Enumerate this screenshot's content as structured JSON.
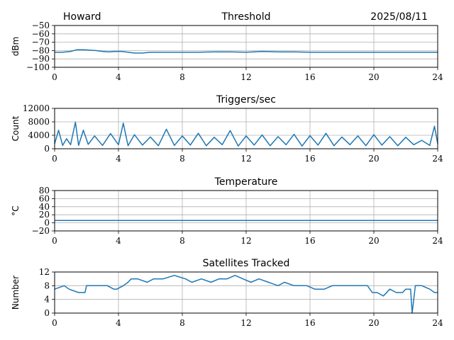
{
  "header": {
    "station": "Howard",
    "date": "2025/08/11"
  },
  "chart_data": [
    {
      "type": "line",
      "title": "Threshold",
      "xlabel": "",
      "ylabel": "dBm",
      "xlim": [
        0,
        24
      ],
      "ylim": [
        -100,
        -50
      ],
      "xticks": [
        0,
        4,
        8,
        12,
        16,
        20,
        24
      ],
      "yticks": [
        -100,
        -90,
        -80,
        -70,
        -60,
        -50
      ],
      "ytick_labels": [
        "−100",
        "−90",
        "−80",
        "−70",
        "−60",
        "−50"
      ],
      "grid": true,
      "series": [
        {
          "color": "#1f77b4",
          "x": [
            0,
            0.5,
            1,
            1.4,
            1.8,
            2.2,
            2.6,
            3,
            3.4,
            3.8,
            4.2,
            4.6,
            5,
            5.5,
            6,
            7,
            8,
            9,
            10,
            11,
            12,
            13,
            14,
            15,
            16,
            17,
            18,
            19,
            20,
            21,
            22,
            23,
            24
          ],
          "values": [
            -82,
            -82,
            -81,
            -79,
            -79,
            -79.5,
            -80,
            -81,
            -81.5,
            -81,
            -81,
            -82,
            -83,
            -83,
            -82,
            -82,
            -82,
            -82,
            -81.5,
            -81.5,
            -82,
            -81,
            -81.5,
            -81.5,
            -82,
            -82,
            -82,
            -82,
            -82,
            -82,
            -82,
            -82,
            -82
          ]
        }
      ]
    },
    {
      "type": "line",
      "title": "Triggers/sec",
      "xlabel": "",
      "ylabel": "Count",
      "xlim": [
        0,
        24
      ],
      "ylim": [
        0,
        12000
      ],
      "xticks": [
        0,
        4,
        8,
        12,
        16,
        20,
        24
      ],
      "yticks": [
        0,
        4000,
        8000,
        12000
      ],
      "ytick_labels": [
        "0",
        "4000",
        "8000",
        "12000"
      ],
      "grid": true,
      "series": [
        {
          "color": "#1f77b4",
          "x": [
            0,
            0.25,
            0.5,
            0.75,
            1,
            1.3,
            1.5,
            1.8,
            2.1,
            2.5,
            3,
            3.5,
            4,
            4.3,
            4.6,
            5,
            5.5,
            6,
            6.5,
            7,
            7.5,
            8,
            8.5,
            9,
            9.5,
            10,
            10.5,
            11,
            11.5,
            12,
            12.5,
            13,
            13.5,
            14,
            14.5,
            15,
            15.5,
            16,
            16.5,
            17,
            17.5,
            18,
            18.5,
            19,
            19.5,
            20,
            20.5,
            21,
            21.5,
            22,
            22.5,
            23,
            23.5,
            23.8,
            24
          ],
          "values": [
            1500,
            5500,
            1000,
            3000,
            1200,
            7900,
            1000,
            5500,
            1300,
            3800,
            1000,
            4500,
            1200,
            7600,
            900,
            4200,
            1100,
            3500,
            900,
            5800,
            1000,
            3800,
            1100,
            4600,
            900,
            3400,
            1200,
            5400,
            800,
            3800,
            1100,
            4100,
            900,
            3600,
            1200,
            4300,
            800,
            3900,
            1100,
            4600,
            900,
            3500,
            1200,
            3800,
            900,
            4200,
            1100,
            3600,
            900,
            3400,
            1200,
            2500,
            1000,
            6700,
            1500
          ]
        }
      ]
    },
    {
      "type": "line",
      "title": "Temperature",
      "xlabel": "",
      "ylabel": "°C",
      "xlim": [
        0,
        24
      ],
      "ylim": [
        -20,
        80
      ],
      "xticks": [
        0,
        4,
        8,
        12,
        16,
        20,
        24
      ],
      "yticks": [
        -20,
        0,
        20,
        40,
        60,
        80
      ],
      "ytick_labels": [
        "−20",
        "0",
        "20",
        "40",
        "60",
        "80"
      ],
      "grid": true,
      "series": [
        {
          "color": "#1f77b4",
          "x": [
            0,
            24
          ],
          "values": [
            6,
            6
          ]
        }
      ]
    },
    {
      "type": "line",
      "title": "Satellites Tracked",
      "xlabel": "",
      "ylabel": "Number",
      "xlim": [
        0,
        24
      ],
      "ylim": [
        0,
        12
      ],
      "xticks": [
        0,
        4,
        8,
        12,
        16,
        20,
        24
      ],
      "yticks": [
        0,
        4,
        8,
        12
      ],
      "ytick_labels": [
        "0",
        "4",
        "8",
        "12"
      ],
      "grid": true,
      "series": [
        {
          "color": "#1f77b4",
          "x": [
            0,
            0.6,
            0.9,
            1.5,
            1.9,
            2,
            2.3,
            3.3,
            3.7,
            3.9,
            4.3,
            4.6,
            4.8,
            5.2,
            5.8,
            6.2,
            6.8,
            7.5,
            8.2,
            8.6,
            9.2,
            9.8,
            10.3,
            10.8,
            11.3,
            11.8,
            12.3,
            12.8,
            13.4,
            14,
            14.4,
            15,
            15.8,
            16.3,
            16.9,
            17.4,
            17.9,
            18.4,
            19,
            19.6,
            19.9,
            20.2,
            20.6,
            21,
            21.4,
            21.8,
            22,
            22.3,
            22.4,
            22.6,
            23,
            23.5,
            23.8,
            24
          ],
          "values": [
            7,
            8,
            7,
            6,
            6,
            8,
            8,
            8,
            7,
            7,
            8,
            9,
            10,
            10,
            9,
            10,
            10,
            11,
            10,
            9,
            10,
            9,
            10,
            10,
            11,
            10,
            9,
            10,
            9,
            8,
            9,
            8,
            8,
            7,
            7,
            8,
            8,
            8,
            8,
            8,
            6,
            6,
            5,
            7,
            6,
            6,
            7,
            7,
            0,
            8,
            8,
            7,
            6,
            6
          ]
        }
      ]
    }
  ]
}
